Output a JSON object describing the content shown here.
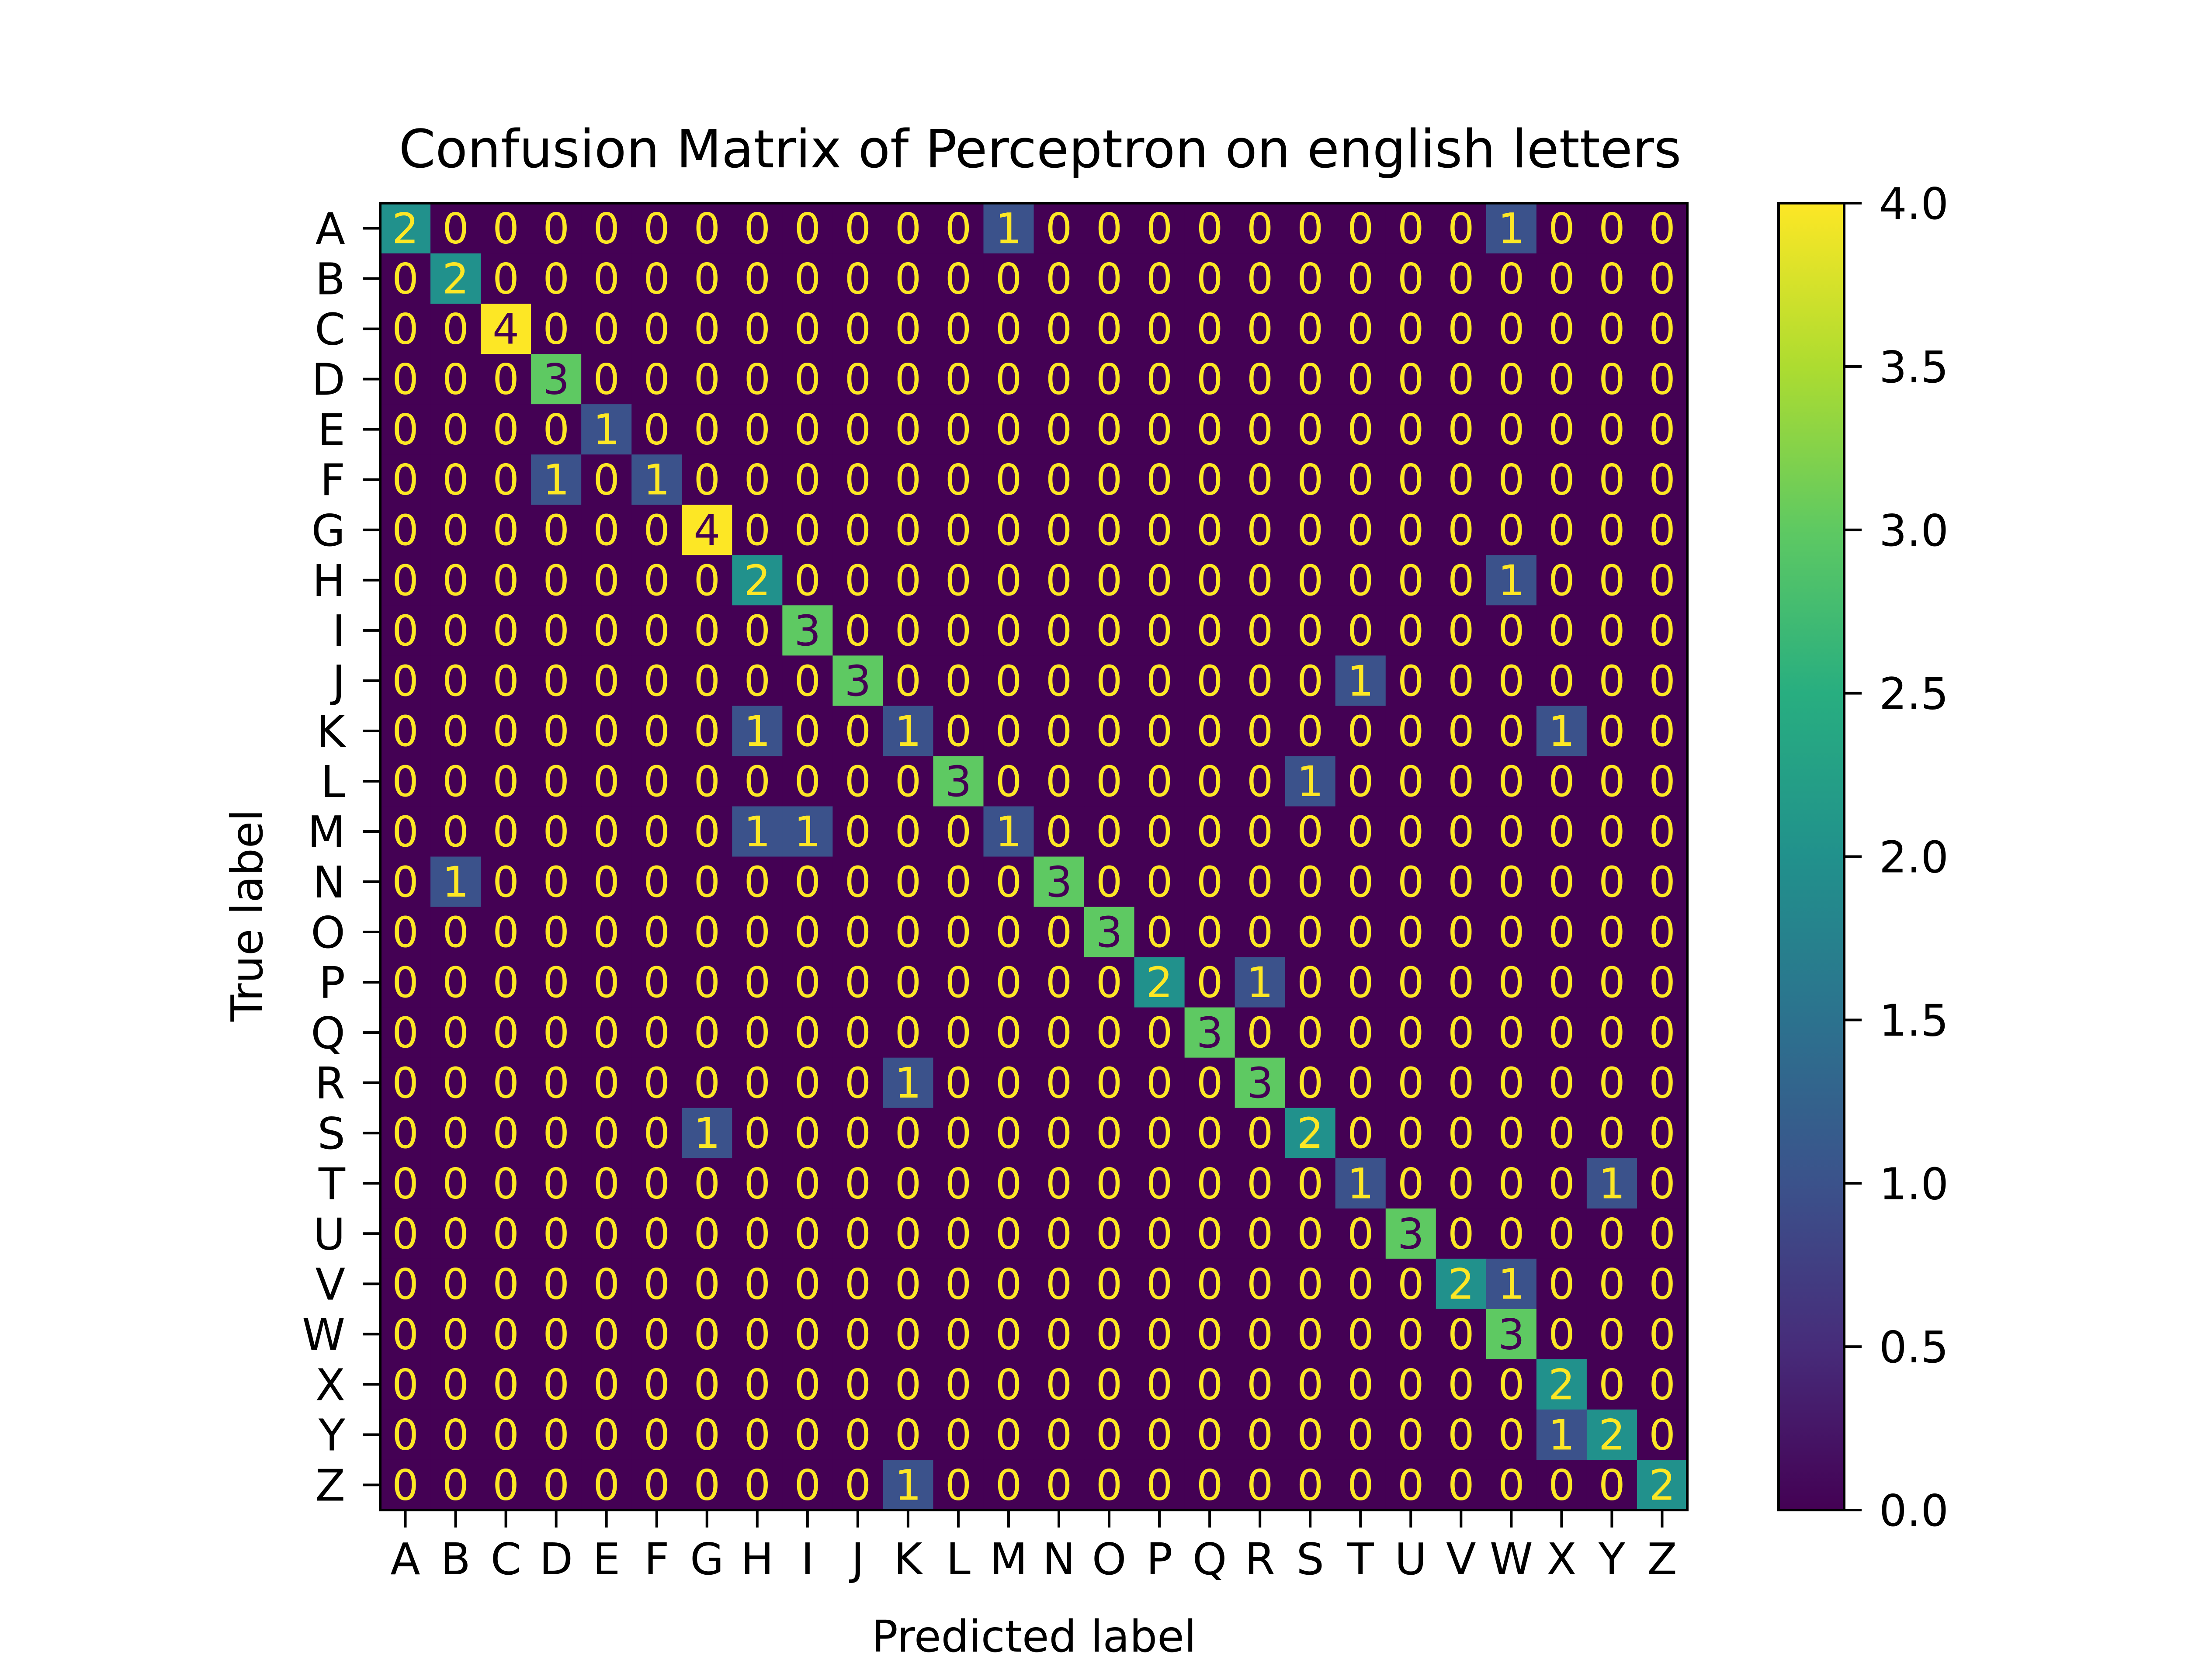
{
  "chart_data": {
    "type": "heatmap",
    "title": "Confusion Matrix of Perceptron on english letters",
    "xlabel": "Predicted label",
    "ylabel": "True label",
    "x_categories": [
      "A",
      "B",
      "C",
      "D",
      "E",
      "F",
      "G",
      "H",
      "I",
      "J",
      "K",
      "L",
      "M",
      "N",
      "O",
      "P",
      "Q",
      "R",
      "S",
      "T",
      "U",
      "V",
      "W",
      "X",
      "Y",
      "Z"
    ],
    "y_categories": [
      "A",
      "B",
      "C",
      "D",
      "E",
      "F",
      "G",
      "H",
      "I",
      "J",
      "K",
      "L",
      "M",
      "N",
      "O",
      "P",
      "Q",
      "R",
      "S",
      "T",
      "U",
      "V",
      "W",
      "X",
      "Y",
      "Z"
    ],
    "matrix": [
      [
        2,
        0,
        0,
        0,
        0,
        0,
        0,
        0,
        0,
        0,
        0,
        0,
        1,
        0,
        0,
        0,
        0,
        0,
        0,
        0,
        0,
        0,
        1,
        0,
        0,
        0
      ],
      [
        0,
        2,
        0,
        0,
        0,
        0,
        0,
        0,
        0,
        0,
        0,
        0,
        0,
        0,
        0,
        0,
        0,
        0,
        0,
        0,
        0,
        0,
        0,
        0,
        0,
        0
      ],
      [
        0,
        0,
        4,
        0,
        0,
        0,
        0,
        0,
        0,
        0,
        0,
        0,
        0,
        0,
        0,
        0,
        0,
        0,
        0,
        0,
        0,
        0,
        0,
        0,
        0,
        0
      ],
      [
        0,
        0,
        0,
        3,
        0,
        0,
        0,
        0,
        0,
        0,
        0,
        0,
        0,
        0,
        0,
        0,
        0,
        0,
        0,
        0,
        0,
        0,
        0,
        0,
        0,
        0
      ],
      [
        0,
        0,
        0,
        0,
        1,
        0,
        0,
        0,
        0,
        0,
        0,
        0,
        0,
        0,
        0,
        0,
        0,
        0,
        0,
        0,
        0,
        0,
        0,
        0,
        0,
        0
      ],
      [
        0,
        0,
        0,
        1,
        0,
        1,
        0,
        0,
        0,
        0,
        0,
        0,
        0,
        0,
        0,
        0,
        0,
        0,
        0,
        0,
        0,
        0,
        0,
        0,
        0,
        0
      ],
      [
        0,
        0,
        0,
        0,
        0,
        0,
        4,
        0,
        0,
        0,
        0,
        0,
        0,
        0,
        0,
        0,
        0,
        0,
        0,
        0,
        0,
        0,
        0,
        0,
        0,
        0
      ],
      [
        0,
        0,
        0,
        0,
        0,
        0,
        0,
        2,
        0,
        0,
        0,
        0,
        0,
        0,
        0,
        0,
        0,
        0,
        0,
        0,
        0,
        0,
        1,
        0,
        0,
        0
      ],
      [
        0,
        0,
        0,
        0,
        0,
        0,
        0,
        0,
        3,
        0,
        0,
        0,
        0,
        0,
        0,
        0,
        0,
        0,
        0,
        0,
        0,
        0,
        0,
        0,
        0,
        0
      ],
      [
        0,
        0,
        0,
        0,
        0,
        0,
        0,
        0,
        0,
        3,
        0,
        0,
        0,
        0,
        0,
        0,
        0,
        0,
        0,
        1,
        0,
        0,
        0,
        0,
        0,
        0
      ],
      [
        0,
        0,
        0,
        0,
        0,
        0,
        0,
        1,
        0,
        0,
        1,
        0,
        0,
        0,
        0,
        0,
        0,
        0,
        0,
        0,
        0,
        0,
        0,
        1,
        0,
        0
      ],
      [
        0,
        0,
        0,
        0,
        0,
        0,
        0,
        0,
        0,
        0,
        0,
        3,
        0,
        0,
        0,
        0,
        0,
        0,
        1,
        0,
        0,
        0,
        0,
        0,
        0,
        0
      ],
      [
        0,
        0,
        0,
        0,
        0,
        0,
        0,
        1,
        1,
        0,
        0,
        0,
        1,
        0,
        0,
        0,
        0,
        0,
        0,
        0,
        0,
        0,
        0,
        0,
        0,
        0
      ],
      [
        0,
        1,
        0,
        0,
        0,
        0,
        0,
        0,
        0,
        0,
        0,
        0,
        0,
        3,
        0,
        0,
        0,
        0,
        0,
        0,
        0,
        0,
        0,
        0,
        0,
        0
      ],
      [
        0,
        0,
        0,
        0,
        0,
        0,
        0,
        0,
        0,
        0,
        0,
        0,
        0,
        0,
        3,
        0,
        0,
        0,
        0,
        0,
        0,
        0,
        0,
        0,
        0,
        0
      ],
      [
        0,
        0,
        0,
        0,
        0,
        0,
        0,
        0,
        0,
        0,
        0,
        0,
        0,
        0,
        0,
        2,
        0,
        1,
        0,
        0,
        0,
        0,
        0,
        0,
        0,
        0
      ],
      [
        0,
        0,
        0,
        0,
        0,
        0,
        0,
        0,
        0,
        0,
        0,
        0,
        0,
        0,
        0,
        0,
        3,
        0,
        0,
        0,
        0,
        0,
        0,
        0,
        0,
        0
      ],
      [
        0,
        0,
        0,
        0,
        0,
        0,
        0,
        0,
        0,
        0,
        1,
        0,
        0,
        0,
        0,
        0,
        0,
        3,
        0,
        0,
        0,
        0,
        0,
        0,
        0,
        0
      ],
      [
        0,
        0,
        0,
        0,
        0,
        0,
        1,
        0,
        0,
        0,
        0,
        0,
        0,
        0,
        0,
        0,
        0,
        0,
        2,
        0,
        0,
        0,
        0,
        0,
        0,
        0
      ],
      [
        0,
        0,
        0,
        0,
        0,
        0,
        0,
        0,
        0,
        0,
        0,
        0,
        0,
        0,
        0,
        0,
        0,
        0,
        0,
        1,
        0,
        0,
        0,
        0,
        1,
        0
      ],
      [
        0,
        0,
        0,
        0,
        0,
        0,
        0,
        0,
        0,
        0,
        0,
        0,
        0,
        0,
        0,
        0,
        0,
        0,
        0,
        0,
        3,
        0,
        0,
        0,
        0,
        0
      ],
      [
        0,
        0,
        0,
        0,
        0,
        0,
        0,
        0,
        0,
        0,
        0,
        0,
        0,
        0,
        0,
        0,
        0,
        0,
        0,
        0,
        0,
        2,
        1,
        0,
        0,
        0
      ],
      [
        0,
        0,
        0,
        0,
        0,
        0,
        0,
        0,
        0,
        0,
        0,
        0,
        0,
        0,
        0,
        0,
        0,
        0,
        0,
        0,
        0,
        0,
        3,
        0,
        0,
        0
      ],
      [
        0,
        0,
        0,
        0,
        0,
        0,
        0,
        0,
        0,
        0,
        0,
        0,
        0,
        0,
        0,
        0,
        0,
        0,
        0,
        0,
        0,
        0,
        0,
        2,
        0,
        0
      ],
      [
        0,
        0,
        0,
        0,
        0,
        0,
        0,
        0,
        0,
        0,
        0,
        0,
        0,
        0,
        0,
        0,
        0,
        0,
        0,
        0,
        0,
        0,
        0,
        1,
        2,
        0
      ],
      [
        0,
        0,
        0,
        0,
        0,
        0,
        0,
        0,
        0,
        0,
        1,
        0,
        0,
        0,
        0,
        0,
        0,
        0,
        0,
        0,
        0,
        0,
        0,
        0,
        0,
        2
      ]
    ],
    "colorbar": {
      "min": 0.0,
      "max": 4.0,
      "ticks": [
        "0.0",
        "0.5",
        "1.0",
        "1.5",
        "2.0",
        "2.5",
        "3.0",
        "3.5",
        "4.0"
      ],
      "colormap": "viridis"
    },
    "annotation_text_color_low": "#fde725",
    "annotation_text_color_high": "#440154"
  }
}
